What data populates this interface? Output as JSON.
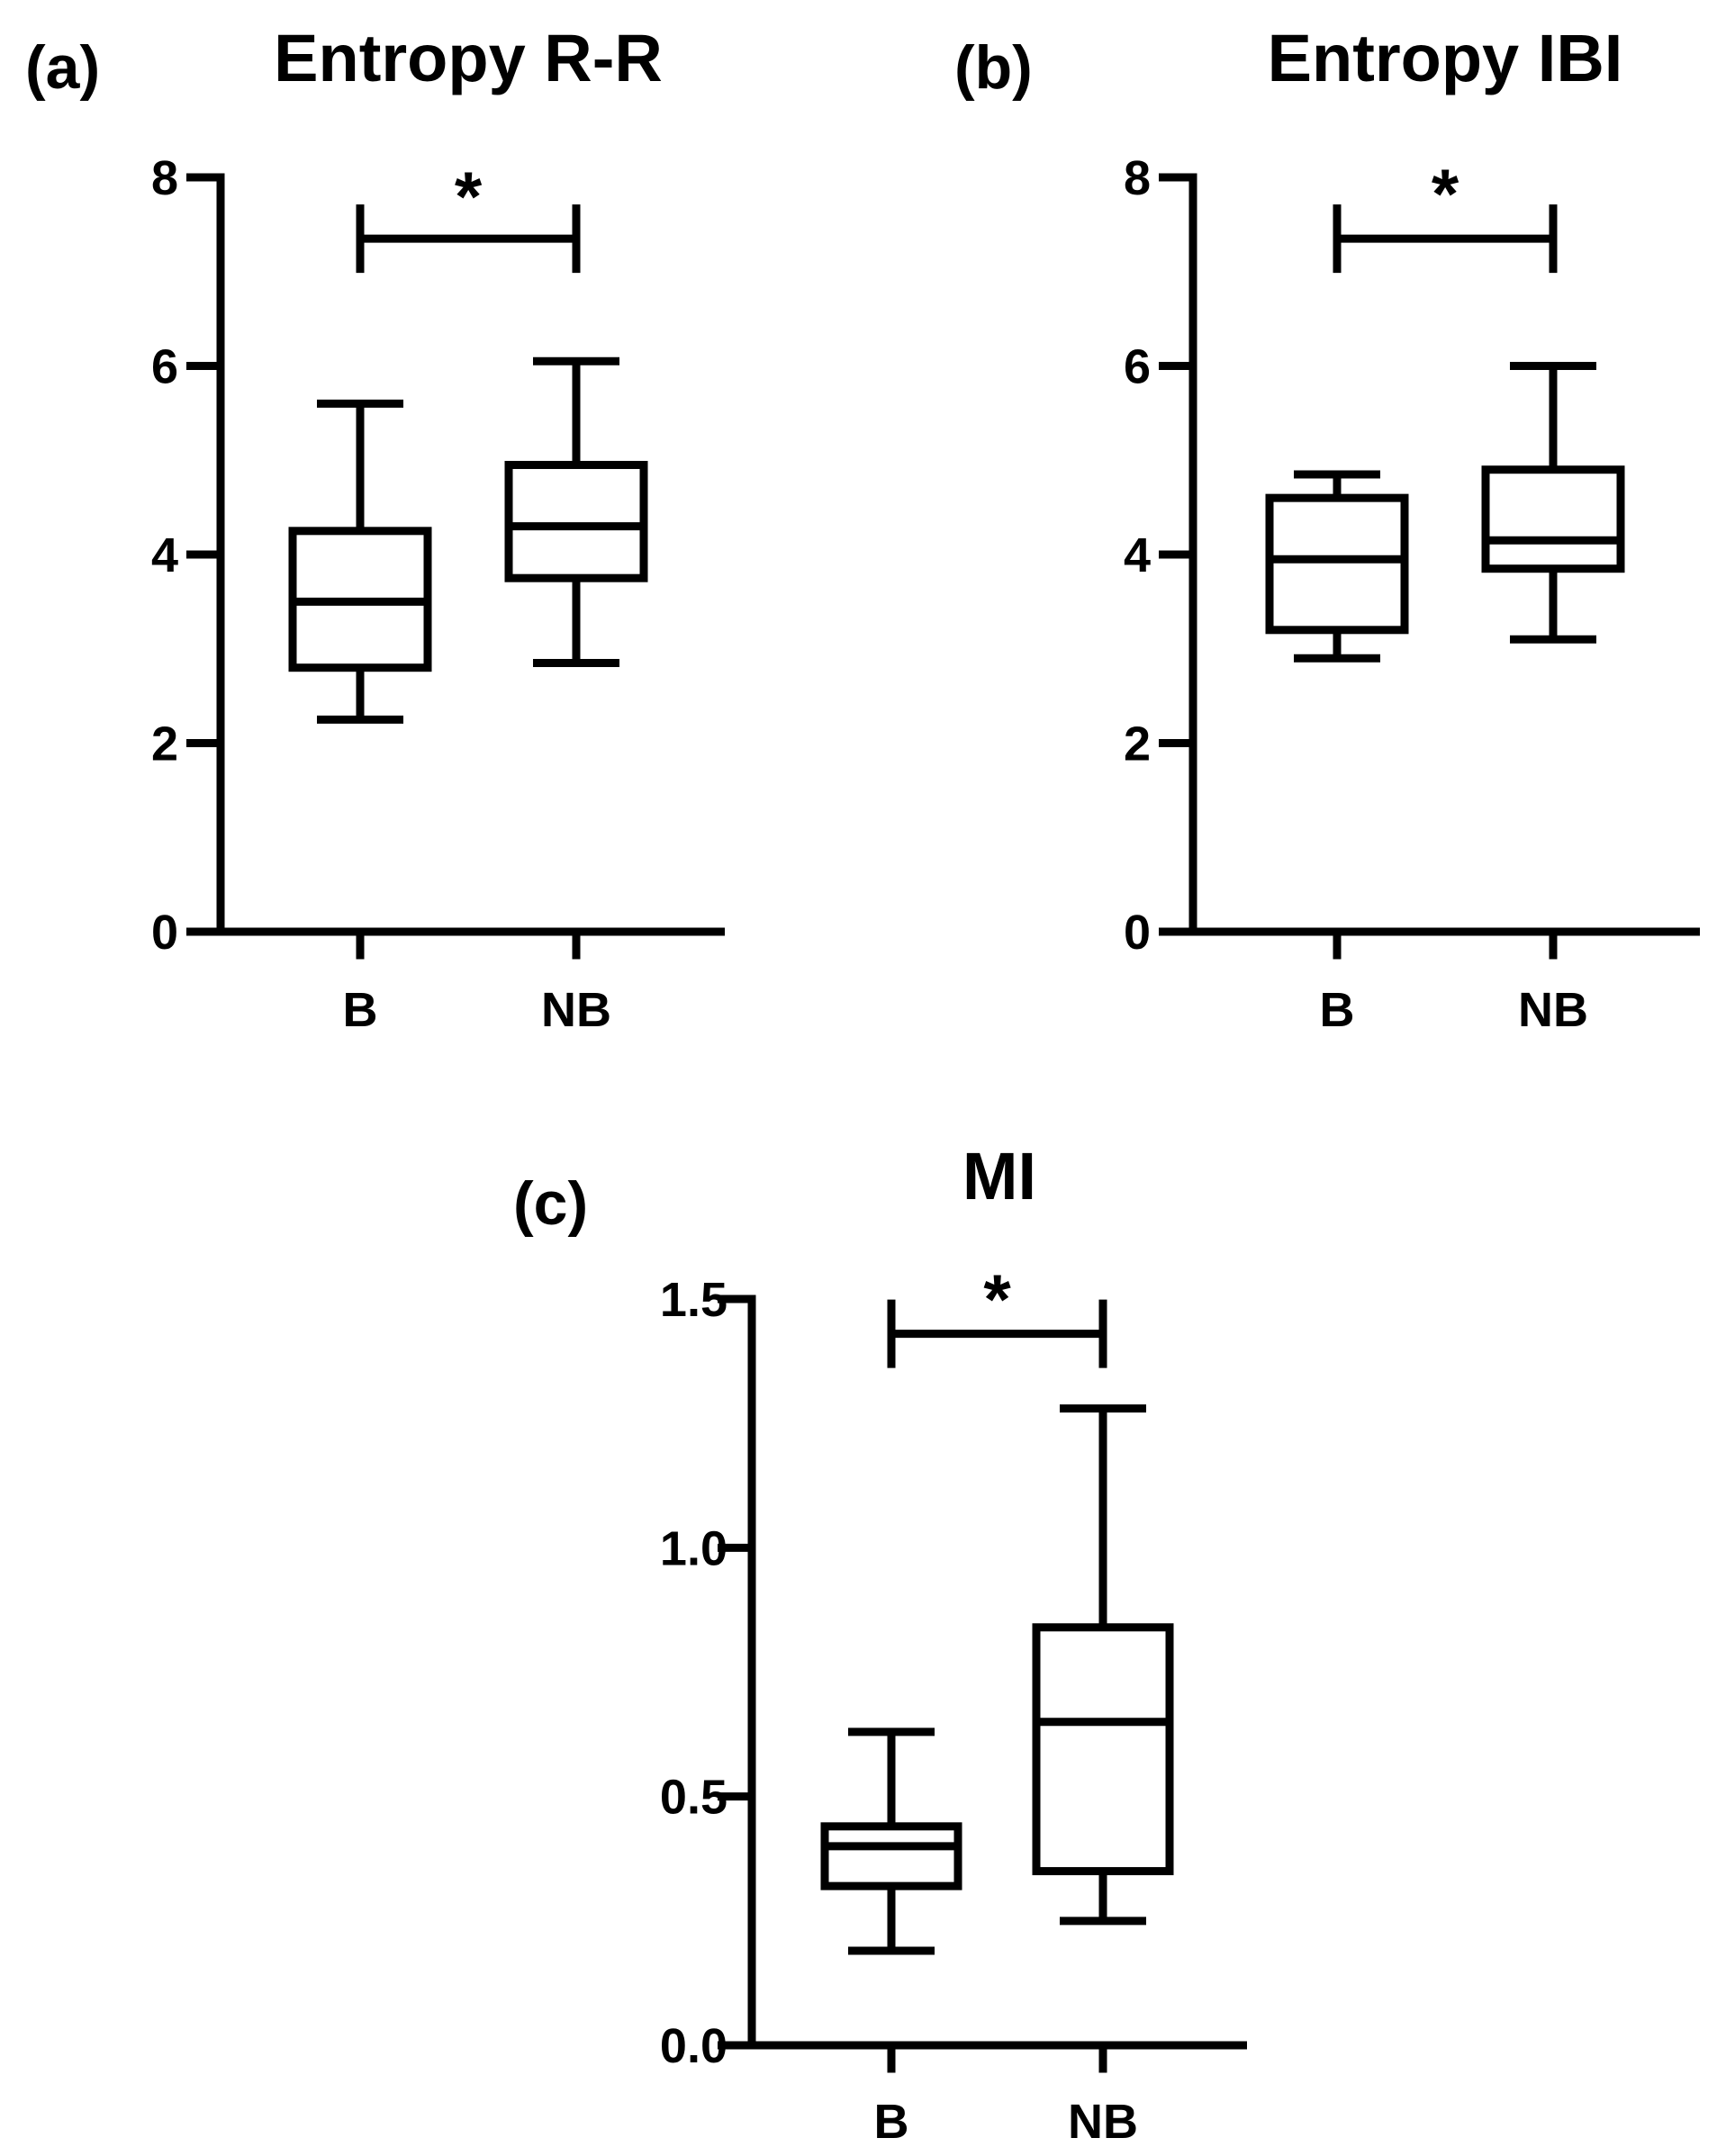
{
  "chart_data": [
    {
      "type": "box",
      "panel_label": "(a)",
      "title": "Entropy R-R",
      "categories": [
        "B",
        "NB"
      ],
      "ylim": [
        0,
        8
      ],
      "yticks": [
        "0",
        "2",
        "4",
        "6",
        "8"
      ],
      "boxes": [
        {
          "min": 2.25,
          "q1": 2.8,
          "median": 3.5,
          "q3": 4.25,
          "max": 5.6
        },
        {
          "min": 2.85,
          "q1": 3.75,
          "median": 4.3,
          "q3": 4.95,
          "max": 6.05
        }
      ],
      "significance": {
        "between": [
          "B",
          "NB"
        ],
        "marker": "*",
        "y": 7.35
      }
    },
    {
      "type": "box",
      "panel_label": "(b)",
      "title": "Entropy IBI",
      "categories": [
        "B",
        "NB"
      ],
      "ylim": [
        0,
        8
      ],
      "yticks": [
        "0",
        "2",
        "4",
        "6",
        "8"
      ],
      "boxes": [
        {
          "min": 2.9,
          "q1": 3.2,
          "median": 3.95,
          "q3": 4.6,
          "max": 4.85
        },
        {
          "min": 3.1,
          "q1": 3.85,
          "median": 4.15,
          "q3": 4.9,
          "max": 6.0
        }
      ],
      "significance": {
        "between": [
          "B",
          "NB"
        ],
        "marker": "*",
        "y": 7.35
      }
    },
    {
      "type": "box",
      "panel_label": "(c)",
      "title": "MI",
      "categories": [
        "B",
        "NB"
      ],
      "ylim": [
        0,
        1.5
      ],
      "yticks": [
        "0.0",
        "0.5",
        "1.0",
        "1.5"
      ],
      "boxes": [
        {
          "min": 0.19,
          "q1": 0.32,
          "median": 0.4,
          "q3": 0.44,
          "max": 0.63
        },
        {
          "min": 0.25,
          "q1": 0.35,
          "median": 0.65,
          "q3": 0.84,
          "max": 1.28
        }
      ],
      "significance": {
        "between": [
          "B",
          "NB"
        ],
        "marker": "*",
        "y": 1.43
      }
    }
  ]
}
